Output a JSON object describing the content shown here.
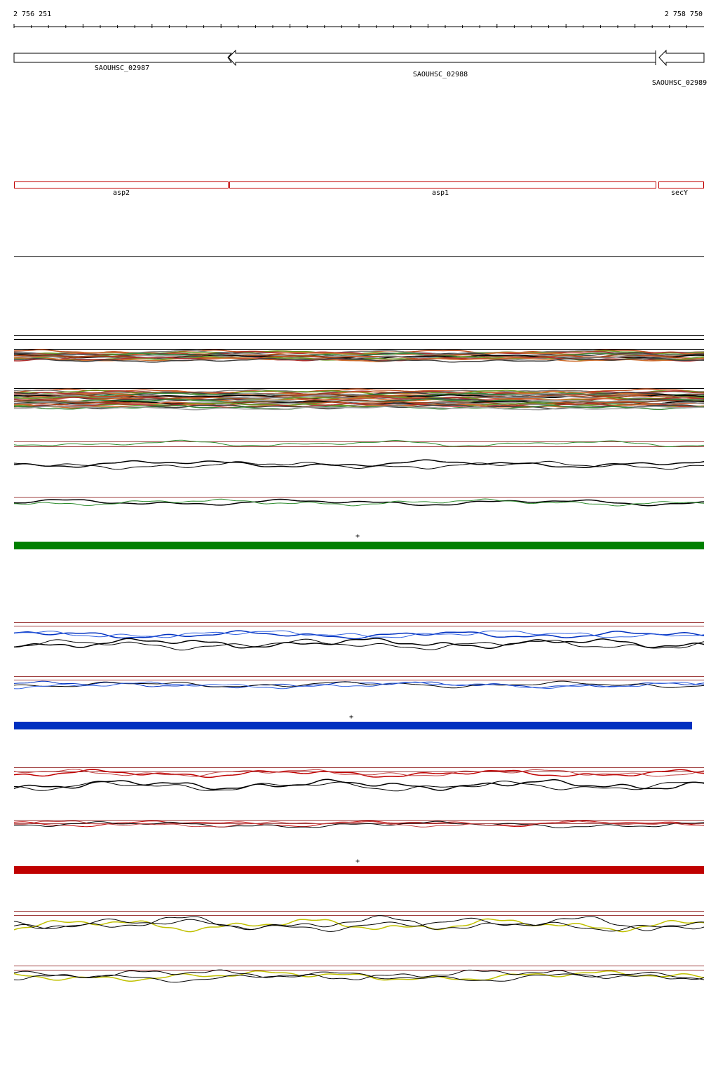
{
  "ruler": {
    "start": "2 756 251",
    "end": "2 758 750"
  },
  "genes": [
    {
      "label": "SAOUHSC_02987"
    },
    {
      "label": "SAOUHSC_02988"
    },
    {
      "label": "SAOUHSC_02989"
    }
  ],
  "features": [
    {
      "label": "asp2"
    },
    {
      "label": "asp1"
    },
    {
      "label": "secY"
    }
  ],
  "strand_markers": [
    "+",
    "+",
    "+"
  ]
}
